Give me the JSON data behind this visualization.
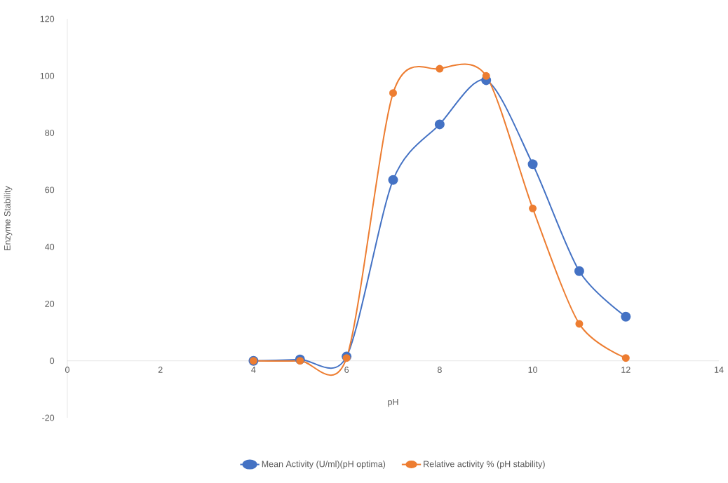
{
  "chart_data": {
    "type": "line",
    "xlabel": "pH",
    "ylabel": "Enzyme Stability",
    "x": [
      4,
      5,
      6,
      7,
      8,
      9,
      10,
      11,
      12
    ],
    "series": [
      {
        "name": "Mean Activity (U/ml)(pH optima)",
        "color": "#4472c4",
        "values": [
          0,
          0.5,
          1.5,
          63.5,
          83,
          98.5,
          69,
          31.5,
          15.5
        ]
      },
      {
        "name": "Relative activity % (pH stability)",
        "color": "#ed7d31",
        "values": [
          0,
          0,
          1,
          94,
          102.5,
          100,
          53.5,
          13,
          1
        ]
      }
    ],
    "xlim": [
      0,
      14
    ],
    "ylim": [
      -20,
      120
    ],
    "xticks": [
      0,
      2,
      4,
      6,
      8,
      10,
      12,
      14
    ],
    "yticks": [
      -20,
      0,
      20,
      40,
      60,
      80,
      100,
      120
    ],
    "marker": "circle",
    "legend": "bottom"
  }
}
